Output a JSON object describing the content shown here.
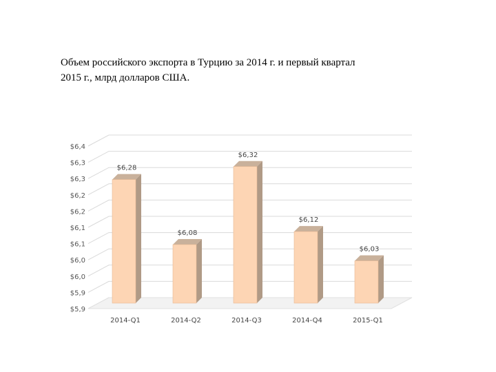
{
  "title_lines": [
    "Объем российского экспорта в Турцию за 2014 г. и первый квартал",
    "2015 г., млрд долларов США."
  ],
  "colors": {
    "bar_front": "#fdd5b4",
    "bar_side": "#b09a86",
    "bar_top": "#c9b19b",
    "grid": "#d9d9d9",
    "floor": "#e0e0e0"
  },
  "chart_data": {
    "type": "bar",
    "style": "3d-column",
    "categories": [
      "2014-Q1",
      "2014-Q2",
      "2014-Q3",
      "2014-Q4",
      "2015-Q1"
    ],
    "values": [
      6.28,
      6.08,
      6.32,
      6.12,
      6.03
    ],
    "data_labels": [
      "$6,28",
      "$6,08",
      "$6,32",
      "$6,12",
      "$6,03"
    ],
    "y_tick_labels": [
      "$5,9",
      "$5,9",
      "$6,0",
      "$6,0",
      "$6,1",
      "$6,1",
      "$6,2",
      "$6,2",
      "$6,3",
      "$6,3",
      "$6,4"
    ],
    "ylim": [
      5.9,
      6.4
    ],
    "grid": true,
    "legend": "none"
  }
}
